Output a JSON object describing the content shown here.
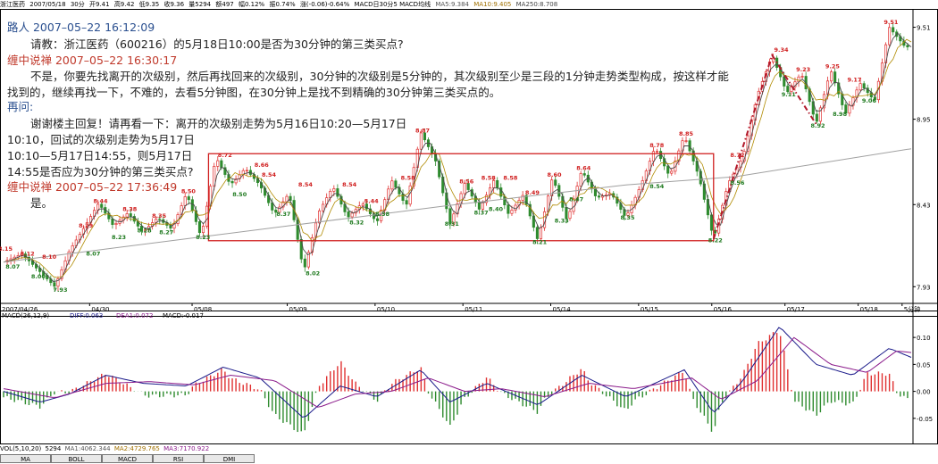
{
  "header": {
    "stock_name": "浙江医药",
    "date": "2007/05/18",
    "period": "30分",
    "open": "开9.41",
    "high": "高9.42",
    "low": "低9.35",
    "close": "收9.36",
    "volume": "量5294",
    "amount": "额497",
    "change": "幅0.12%",
    "amplitude": "振0.74%",
    "diff": "涨(-0.06)-0.64%",
    "code_line": "600216",
    "ma_title": "MACD日30分5 MACD均线",
    "ma5": "MA5:9.384",
    "ma10": "MA10:9.405",
    "ma250": "MA250:8.708"
  },
  "forum": {
    "post1_author": "路人 2007–05–22 16:12:09",
    "post1_text": "请教：浙江医药（600216）的5月18日10:00是否为30分钟的第三类买点?",
    "reply1_author": "缠中说禅 2007–05–22 16:30:17",
    "reply1_line1": "不是，你要先找离开的次级别，然后再找回来的次级别，30分钟的次级别是5分钟的，其次级别至少是三段的1分钟走势类型构成，按这样才能",
    "reply1_line2": "找到的，继续再找一下，不难的，去看5分钟图，在30分钟上是找不到精确的30分钟第三类买点的。",
    "post2_author": "再问:",
    "post2_line1": "谢谢楼主回复！请再看一下：离开的次级别走势为5月16日10:20—5月17日",
    "post2_line2": "10:10，回试的次级别走势为5月17日",
    "post2_line3": "10:10—5月17日14:55，则5月17日",
    "post2_line4": "14:55是否应为30分钟的第三类买点?",
    "reply2_author": "缠中说禅 2007–05–22 17:36:49",
    "reply2_text": "是。"
  },
  "macd_header": {
    "title": "MACD(26,12,9)",
    "diff": "DIFF:0.063",
    "dea": "DEA1:0.072",
    "macd": "MACD:-0.017"
  },
  "vol_header": {
    "title": "VOL(5,10,20)",
    "vol": "5294",
    "ma1": "MA1:4062.344",
    "ma2": "MA2:4729.765",
    "ma3": "MA3:7170.922"
  },
  "tabs": [
    "MA",
    "BOLL",
    "MACD",
    "RSI",
    "DMI"
  ],
  "colors": {
    "up": "#e03030",
    "down": "#2e8b2e",
    "ma_line": "#a0a0a0",
    "box": "#d02020",
    "label_red": "#d02020",
    "label_green": "#1f7a1f",
    "dif": "#1a1a8a",
    "dea": "#8a1a8a"
  },
  "chart_data": [
    {
      "type": "line",
      "title": "",
      "xlabel": "",
      "ylabel": "",
      "x_ticks": [
        "2007/04/26",
        "04/30",
        "05/08",
        "05/09",
        "05/10",
        "05/11",
        "05/14",
        "05/15",
        "05/16",
        "05/17",
        "05/18",
        "5分钟"
      ],
      "y_ticks": [
        7.93,
        8.43,
        8.95,
        9.51
      ],
      "ylim": [
        7.85,
        9.6
      ],
      "price_path": [
        [
          0,
          8.08
        ],
        [
          5,
          8.13
        ],
        [
          10,
          8.02
        ],
        [
          14,
          7.93
        ],
        [
          18,
          8.15
        ],
        [
          22,
          8.29
        ],
        [
          26,
          8.44
        ],
        [
          30,
          8.3
        ],
        [
          34,
          8.38
        ],
        [
          38,
          8.26
        ],
        [
          42,
          8.35
        ],
        [
          46,
          8.28
        ],
        [
          50,
          8.5
        ],
        [
          54,
          8.23
        ],
        [
          58,
          8.72
        ],
        [
          62,
          8.55
        ],
        [
          66,
          8.65
        ],
        [
          70,
          8.55
        ],
        [
          74,
          8.37
        ],
        [
          78,
          8.5
        ],
        [
          82,
          8.02
        ],
        [
          86,
          8.38
        ],
        [
          90,
          8.54
        ],
        [
          94,
          8.35
        ],
        [
          98,
          8.44
        ],
        [
          102,
          8.32
        ],
        [
          106,
          8.58
        ],
        [
          110,
          8.42
        ],
        [
          114,
          8.87
        ],
        [
          118,
          8.7
        ],
        [
          122,
          8.31
        ],
        [
          126,
          8.56
        ],
        [
          130,
          8.4
        ],
        [
          134,
          8.58
        ],
        [
          138,
          8.37
        ],
        [
          142,
          8.49
        ],
        [
          146,
          8.21
        ],
        [
          150,
          8.6
        ],
        [
          154,
          8.33
        ],
        [
          158,
          8.64
        ],
        [
          162,
          8.47
        ],
        [
          166,
          8.5
        ],
        [
          170,
          8.35
        ],
        [
          174,
          8.54
        ],
        [
          178,
          8.78
        ],
        [
          182,
          8.6
        ],
        [
          186,
          8.85
        ],
        [
          190,
          8.6
        ],
        [
          194,
          8.22
        ],
        [
          198,
          8.56
        ],
        [
          202,
          8.72
        ],
        [
          206,
          9.1
        ],
        [
          210,
          9.34
        ],
        [
          214,
          9.11
        ],
        [
          218,
          9.23
        ],
        [
          222,
          8.92
        ],
        [
          226,
          9.25
        ],
        [
          230,
          8.98
        ],
        [
          234,
          9.17
        ],
        [
          238,
          9.06
        ],
        [
          242,
          9.51
        ],
        [
          246,
          9.4
        ],
        [
          248,
          9.38
        ]
      ],
      "ma250": [
        [
          0,
          8.08
        ],
        [
          60,
          8.25
        ],
        [
          120,
          8.42
        ],
        [
          170,
          8.55
        ],
        [
          200,
          8.6
        ],
        [
          248,
          8.77
        ]
      ],
      "price_labels": [
        {
          "text": "8.15",
          "x": 0,
          "y": 8.15,
          "color": "red"
        },
        {
          "text": "8.12",
          "x": 6,
          "y": 8.12,
          "color": "red"
        },
        {
          "text": "8.07",
          "x": 2,
          "y": 8.04,
          "color": "green"
        },
        {
          "text": "8.10",
          "x": 12,
          "y": 8.1,
          "color": "red"
        },
        {
          "text": "8.00",
          "x": 9,
          "y": 7.98,
          "color": "green"
        },
        {
          "text": "7.93",
          "x": 15,
          "y": 7.9,
          "color": "green"
        },
        {
          "text": "8.29",
          "x": 22,
          "y": 8.29,
          "color": "red"
        },
        {
          "text": "8.07",
          "x": 24,
          "y": 8.12,
          "color": "green"
        },
        {
          "text": "8.44",
          "x": 26,
          "y": 8.44,
          "color": "red"
        },
        {
          "text": "8.38",
          "x": 34,
          "y": 8.39,
          "color": "red"
        },
        {
          "text": "8.23",
          "x": 31,
          "y": 8.22,
          "color": "green"
        },
        {
          "text": "8.35",
          "x": 42,
          "y": 8.35,
          "color": "red"
        },
        {
          "text": "8.28",
          "x": 38,
          "y": 8.26,
          "color": "green"
        },
        {
          "text": "8.27",
          "x": 44,
          "y": 8.25,
          "color": "green"
        },
        {
          "text": "8.50",
          "x": 50,
          "y": 8.5,
          "color": "red"
        },
        {
          "text": "8.23",
          "x": 54,
          "y": 8.22,
          "color": "green"
        },
        {
          "text": "8.72",
          "x": 60,
          "y": 8.72,
          "color": "red"
        },
        {
          "text": "8.50",
          "x": 64,
          "y": 8.48,
          "color": "green"
        },
        {
          "text": "8.66",
          "x": 70,
          "y": 8.66,
          "color": "red"
        },
        {
          "text": "8.54",
          "x": 72,
          "y": 8.6,
          "color": "red"
        },
        {
          "text": "8.37",
          "x": 76,
          "y": 8.36,
          "color": "green"
        },
        {
          "text": "8.54",
          "x": 82,
          "y": 8.54,
          "color": "red"
        },
        {
          "text": "8.02",
          "x": 84,
          "y": 8.0,
          "color": "green"
        },
        {
          "text": "8.54",
          "x": 94,
          "y": 8.54,
          "color": "red"
        },
        {
          "text": "8.32",
          "x": 96,
          "y": 8.31,
          "color": "green"
        },
        {
          "text": "8.44",
          "x": 100,
          "y": 8.44,
          "color": "red"
        },
        {
          "text": "8.38",
          "x": 103,
          "y": 8.36,
          "color": "green"
        },
        {
          "text": "8.58",
          "x": 110,
          "y": 8.58,
          "color": "red"
        },
        {
          "text": "8.87",
          "x": 114,
          "y": 8.87,
          "color": "red"
        },
        {
          "text": "8.31",
          "x": 122,
          "y": 8.3,
          "color": "green"
        },
        {
          "text": "8.56",
          "x": 126,
          "y": 8.56,
          "color": "red"
        },
        {
          "text": "8.58",
          "x": 132,
          "y": 8.58,
          "color": "red"
        },
        {
          "text": "8.37",
          "x": 130,
          "y": 8.37,
          "color": "green"
        },
        {
          "text": "8.40",
          "x": 134,
          "y": 8.39,
          "color": "green"
        },
        {
          "text": "8.58",
          "x": 138,
          "y": 8.58,
          "color": "red"
        },
        {
          "text": "8.49",
          "x": 144,
          "y": 8.49,
          "color": "red"
        },
        {
          "text": "8.21",
          "x": 146,
          "y": 8.19,
          "color": "green"
        },
        {
          "text": "8.60",
          "x": 150,
          "y": 8.6,
          "color": "red"
        },
        {
          "text": "8.33",
          "x": 152,
          "y": 8.32,
          "color": "green"
        },
        {
          "text": "8.47",
          "x": 156,
          "y": 8.45,
          "color": "green"
        },
        {
          "text": "8.64",
          "x": 158,
          "y": 8.64,
          "color": "red"
        },
        {
          "text": "8.35",
          "x": 170,
          "y": 8.34,
          "color": "green"
        },
        {
          "text": "8.54",
          "x": 178,
          "y": 8.53,
          "color": "green"
        },
        {
          "text": "8.78",
          "x": 178,
          "y": 8.78,
          "color": "red"
        },
        {
          "text": "8.85",
          "x": 186,
          "y": 8.85,
          "color": "red"
        },
        {
          "text": "8.22",
          "x": 194,
          "y": 8.2,
          "color": "green"
        },
        {
          "text": "8.56",
          "x": 200,
          "y": 8.55,
          "color": "green"
        },
        {
          "text": "8.72",
          "x": 200,
          "y": 8.72,
          "color": "red"
        },
        {
          "text": "9.34",
          "x": 212,
          "y": 9.36,
          "color": "red"
        },
        {
          "text": "9.11",
          "x": 214,
          "y": 9.09,
          "color": "green"
        },
        {
          "text": "9.23",
          "x": 218,
          "y": 9.24,
          "color": "red"
        },
        {
          "text": "8.92",
          "x": 222,
          "y": 8.9,
          "color": "green"
        },
        {
          "text": "9.25",
          "x": 226,
          "y": 9.26,
          "color": "red"
        },
        {
          "text": "8.98",
          "x": 228,
          "y": 8.97,
          "color": "green"
        },
        {
          "text": "9.17",
          "x": 232,
          "y": 9.18,
          "color": "red"
        },
        {
          "text": "9.06",
          "x": 236,
          "y": 9.05,
          "color": "green"
        },
        {
          "text": "9.51",
          "x": 242,
          "y": 9.53,
          "color": "red"
        }
      ],
      "box": {
        "x0": 56,
        "x1": 194,
        "y0": 8.21,
        "y1": 8.74
      },
      "dashed_path": [
        [
          194,
          8.22
        ],
        [
          210,
          9.34
        ],
        [
          222,
          8.92
        ]
      ]
    },
    {
      "type": "bar",
      "title": "MACD(26,12,9)",
      "y_ticks": [
        0.1,
        0.05,
        0.0,
        -0.05
      ],
      "ylim": [
        -0.085,
        0.13
      ],
      "dif": [
        [
          0,
          0.0
        ],
        [
          10,
          -0.02
        ],
        [
          18,
          -0.005
        ],
        [
          28,
          0.03
        ],
        [
          38,
          0.015
        ],
        [
          50,
          0.01
        ],
        [
          60,
          0.045
        ],
        [
          70,
          0.025
        ],
        [
          82,
          -0.05
        ],
        [
          92,
          0.01
        ],
        [
          102,
          -0.01
        ],
        [
          114,
          0.04
        ],
        [
          122,
          -0.02
        ],
        [
          132,
          0.015
        ],
        [
          146,
          -0.025
        ],
        [
          158,
          0.03
        ],
        [
          170,
          -0.01
        ],
        [
          186,
          0.04
        ],
        [
          194,
          -0.04
        ],
        [
          202,
          0.02
        ],
        [
          212,
          0.12
        ],
        [
          222,
          0.05
        ],
        [
          232,
          0.03
        ],
        [
          242,
          0.08
        ],
        [
          248,
          0.063
        ]
      ],
      "dea": [
        [
          0,
          0.005
        ],
        [
          14,
          -0.012
        ],
        [
          28,
          0.015
        ],
        [
          40,
          0.018
        ],
        [
          52,
          0.012
        ],
        [
          62,
          0.03
        ],
        [
          74,
          0.02
        ],
        [
          86,
          -0.03
        ],
        [
          96,
          -0.005
        ],
        [
          106,
          0.0
        ],
        [
          116,
          0.025
        ],
        [
          126,
          0.0
        ],
        [
          136,
          0.005
        ],
        [
          148,
          -0.01
        ],
        [
          160,
          0.015
        ],
        [
          172,
          0.005
        ],
        [
          188,
          0.025
        ],
        [
          196,
          -0.015
        ],
        [
          206,
          0.02
        ],
        [
          216,
          0.1
        ],
        [
          226,
          0.05
        ],
        [
          236,
          0.035
        ],
        [
          244,
          0.075
        ],
        [
          248,
          0.072
        ]
      ]
    }
  ]
}
